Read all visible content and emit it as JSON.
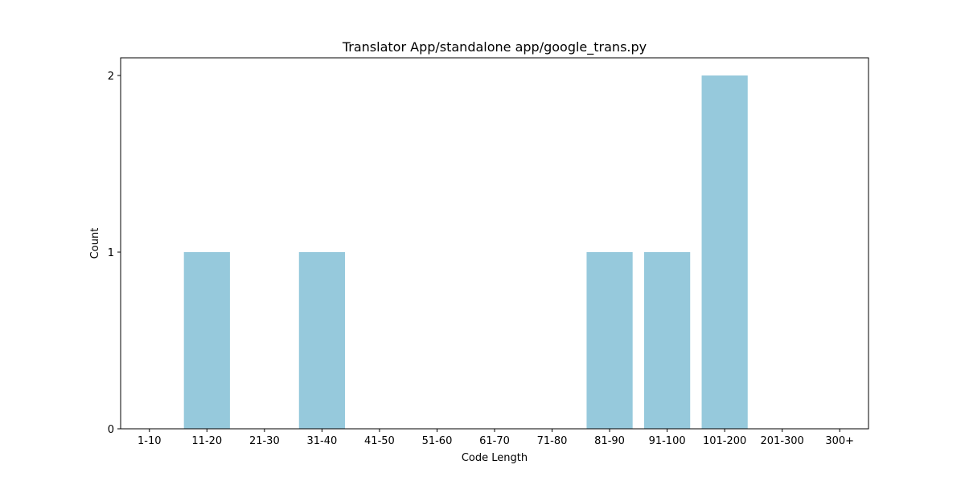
{
  "chart_data": {
    "type": "bar",
    "title": "Translator App/standalone app/google_trans.py",
    "xlabel": "Code Length",
    "ylabel": "Count",
    "categories": [
      "1-10",
      "11-20",
      "21-30",
      "31-40",
      "41-50",
      "51-60",
      "61-70",
      "71-80",
      "81-90",
      "91-100",
      "101-200",
      "201-300",
      "300+"
    ],
    "values": [
      0,
      1,
      0,
      1,
      0,
      0,
      0,
      0,
      1,
      1,
      2,
      0,
      0
    ],
    "ylim": [
      0,
      2.1
    ],
    "yticks": [
      0,
      1,
      2
    ],
    "bar_color": "#96c9dc",
    "grid": false,
    "legend": "none"
  }
}
